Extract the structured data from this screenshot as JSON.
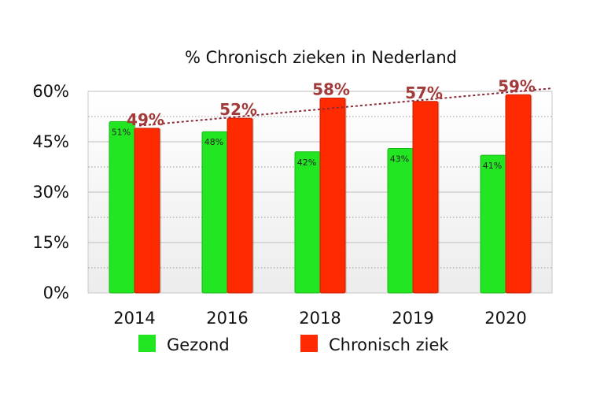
{
  "chart_data": {
    "type": "bar",
    "title": "% Chronisch zieken in Nederland",
    "xlabel": "",
    "ylabel": "",
    "categories": [
      "2014",
      "2016",
      "2018",
      "2019",
      "2020"
    ],
    "series": [
      {
        "name": "Gezond",
        "color": "#22e622",
        "values": [
          51,
          48,
          42,
          43,
          41
        ],
        "labels": [
          "51%",
          "48%",
          "42%",
          "43%",
          "41%"
        ]
      },
      {
        "name": "Chronisch ziek",
        "color": "#ff2a00",
        "values": [
          49,
          52,
          58,
          57,
          59
        ],
        "labels": [
          "49%",
          "52%",
          "58%",
          "57%",
          "59%"
        ]
      }
    ],
    "yticks": [
      "0%",
      "15%",
      "30%",
      "45%",
      "60%"
    ],
    "ylim": [
      0,
      60
    ],
    "grid": true,
    "trendline": {
      "series": "Chronisch ziek",
      "style": "dotted",
      "color": "#8b2a3a"
    },
    "legend": "bottom"
  }
}
